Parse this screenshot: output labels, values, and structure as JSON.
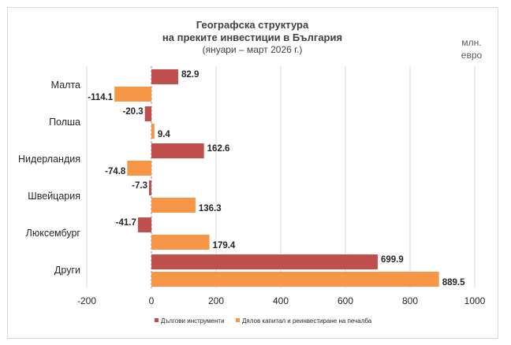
{
  "chart_data": {
    "type": "bar",
    "orientation": "horizontal",
    "title": "Географска структура",
    "title_line2": "на преките инвестиции в България",
    "subtitle": "(януари – март 2026 г.)",
    "unit_line1": "млн.",
    "unit_line2": "евро",
    "categories": [
      "Малта",
      "Полша",
      "Нидерландия",
      "Швейцария",
      "Люксембург",
      "Други"
    ],
    "series": [
      {
        "name": "Дългови инструменти",
        "color": "#c0504d",
        "values": [
          82.9,
          -20.3,
          162.6,
          -7.3,
          -41.7,
          699.9
        ],
        "labels": [
          "82.9",
          "-20.3",
          "162.6",
          "-7.3",
          "-41.7",
          "699.9"
        ]
      },
      {
        "name": "Дялов капитал и реинвестиране на печалба",
        "color": "#f79646",
        "values": [
          -114.1,
          9.4,
          -74.8,
          136.3,
          179.4,
          889.5
        ],
        "labels": [
          "-114.1",
          "9.4",
          "-74.8",
          "136.3",
          "179.4",
          "889.5"
        ]
      }
    ],
    "xlim": [
      -200,
      1000
    ],
    "xticks": [
      -200,
      0,
      200,
      400,
      600,
      800,
      1000
    ],
    "xtick_labels": [
      "-200",
      "0",
      "200",
      "400",
      "600",
      "800",
      "1000"
    ],
    "grid": "vertical",
    "legend": "bottom"
  }
}
